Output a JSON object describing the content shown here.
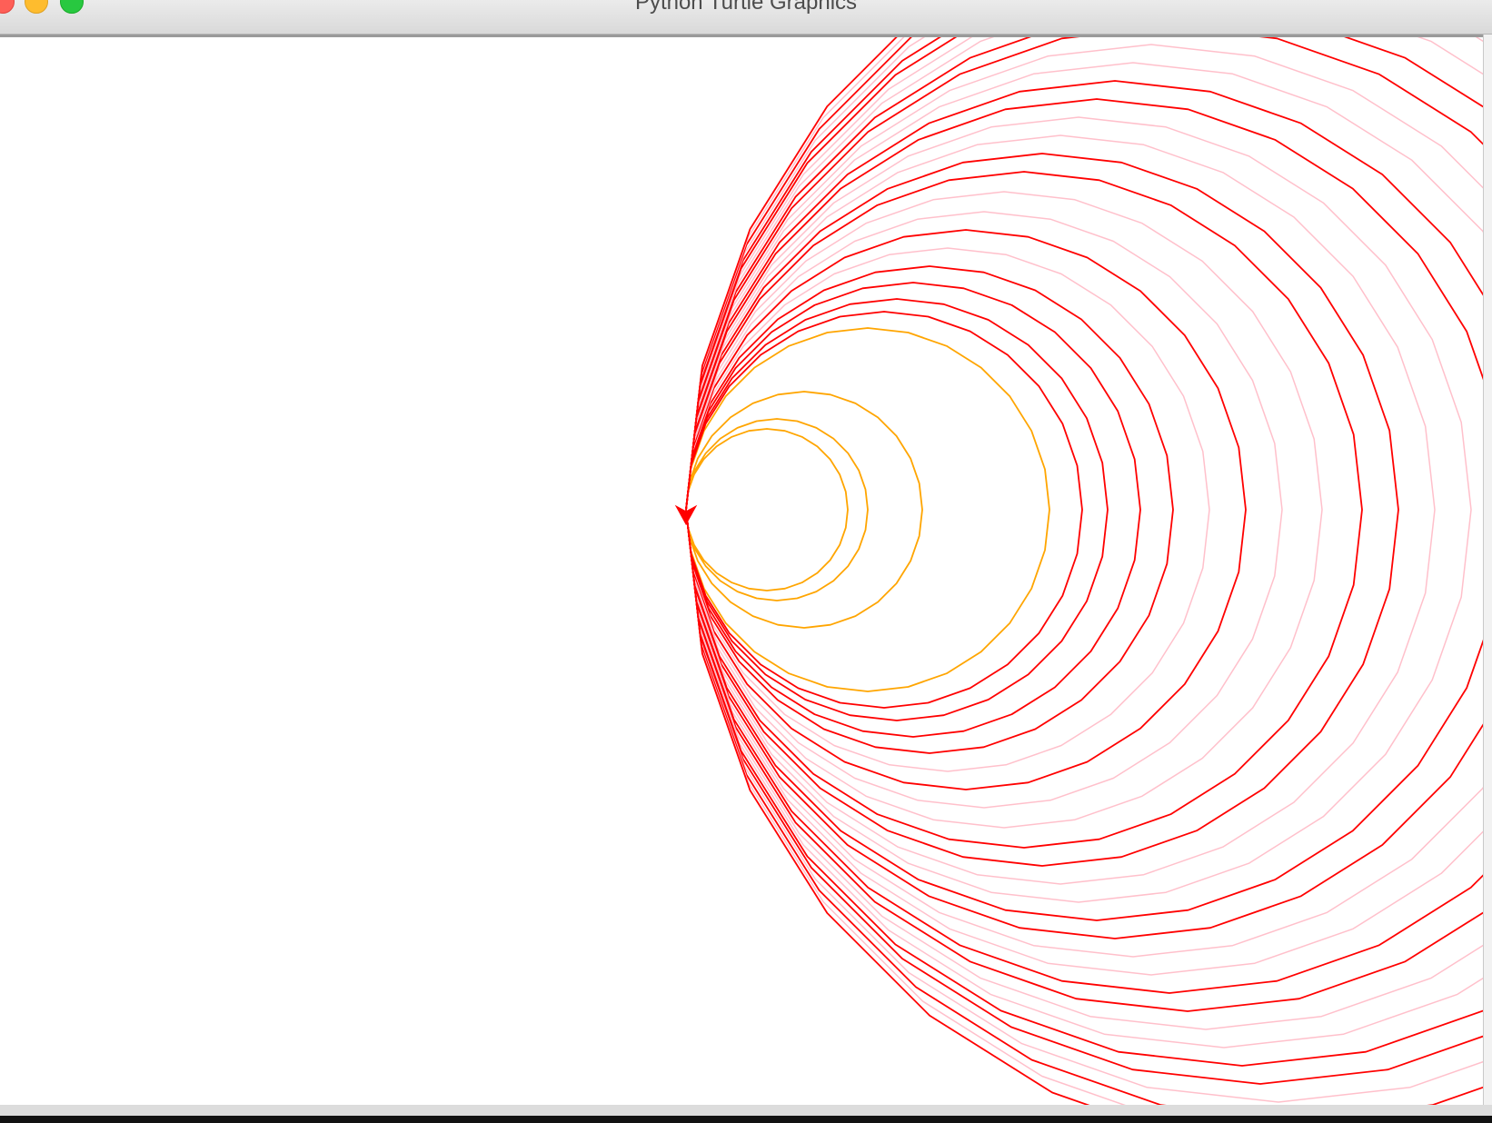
{
  "window": {
    "title": "Python Turtle Graphics"
  },
  "colors": {
    "red": "#ff0000",
    "pink": "#ffc0cb",
    "orange": "#ffa500"
  },
  "canvas": {
    "description_icon": "turtle-cursor-icon",
    "circles": [
      {
        "radius": 89,
        "color": "orange"
      },
      {
        "radius": 100,
        "color": "orange"
      },
      {
        "radius": 130,
        "color": "orange"
      },
      {
        "radius": 200,
        "color": "orange"
      },
      {
        "radius": 218,
        "color": "red"
      },
      {
        "radius": 232,
        "color": "red"
      },
      {
        "radius": 250,
        "color": "red"
      },
      {
        "radius": 268,
        "color": "red"
      },
      {
        "radius": 288,
        "color": "pink"
      },
      {
        "radius": 308,
        "color": "red"
      },
      {
        "radius": 328,
        "color": "pink"
      },
      {
        "radius": 350,
        "color": "pink"
      },
      {
        "radius": 372,
        "color": "red"
      },
      {
        "radius": 392,
        "color": "red"
      },
      {
        "radius": 412,
        "color": "pink"
      },
      {
        "radius": 432,
        "color": "pink"
      },
      {
        "radius": 452,
        "color": "red"
      },
      {
        "radius": 472,
        "color": "red"
      },
      {
        "radius": 492,
        "color": "pink"
      },
      {
        "radius": 512,
        "color": "pink"
      },
      {
        "radius": 532,
        "color": "red"
      },
      {
        "radius": 552,
        "color": "red"
      },
      {
        "radius": 572,
        "color": "pink"
      },
      {
        "radius": 592,
        "color": "pink"
      },
      {
        "radius": 612,
        "color": "red"
      },
      {
        "radius": 632,
        "color": "red"
      },
      {
        "radius": 652,
        "color": "pink"
      },
      {
        "radius": 672,
        "color": "red"
      },
      {
        "radius": 692,
        "color": "pink"
      },
      {
        "radius": 712,
        "color": "red"
      }
    ]
  }
}
